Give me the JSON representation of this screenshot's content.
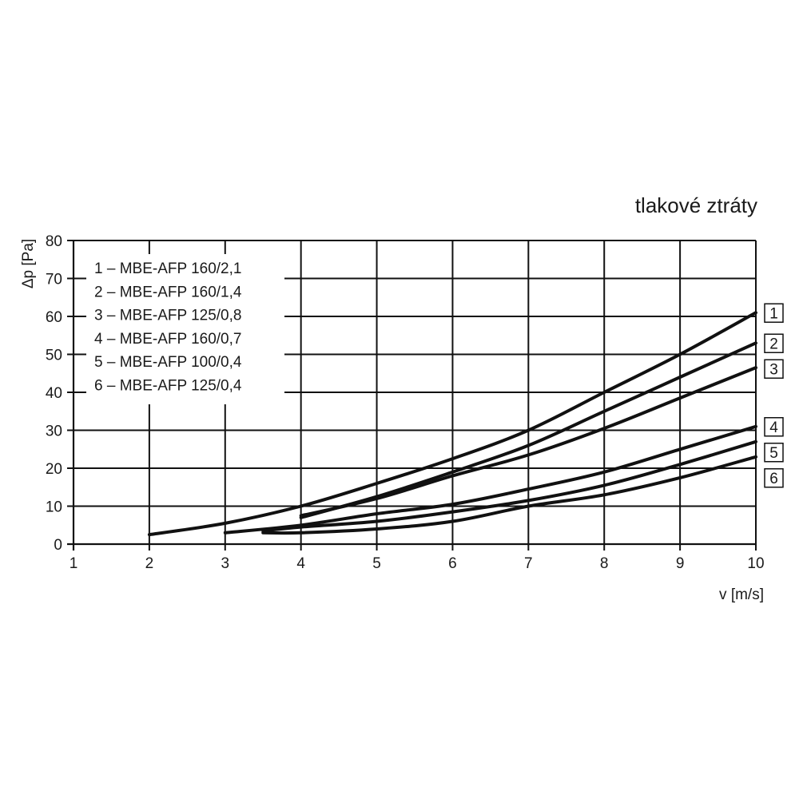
{
  "chart_data": {
    "type": "line",
    "title": "tlakové ztráty",
    "xlabel": "v [m/s]",
    "ylabel": "Δp [Pa]",
    "xlim": [
      1,
      10
    ],
    "ylim": [
      0,
      80
    ],
    "xticks": [
      1,
      2,
      3,
      4,
      5,
      6,
      7,
      8,
      9,
      10
    ],
    "yticks": [
      0,
      10,
      20,
      30,
      40,
      50,
      60,
      70,
      80
    ],
    "grid": true,
    "legend": "top-left",
    "legend_entries": [
      "1 – MBE-AFP 160/2,1",
      "2 – MBE-AFP 160/1,4",
      "3 – MBE-AFP 125/0,8",
      "4 – MBE-AFP 160/0,7",
      "5 – MBE-AFP 100/0,4",
      "6 – MBE-AFP 125/0,4"
    ],
    "series": [
      {
        "name": "1",
        "x": [
          2,
          3,
          4,
          5,
          6,
          7,
          8,
          9,
          10
        ],
        "y": [
          2.5,
          5.5,
          10,
          16,
          22.5,
          30,
          40,
          50,
          61
        ]
      },
      {
        "name": "2",
        "x": [
          4,
          5,
          6,
          7,
          8,
          9,
          10
        ],
        "y": [
          7,
          12.5,
          19,
          26,
          35,
          44,
          53
        ]
      },
      {
        "name": "3",
        "x": [
          4,
          5,
          6,
          7,
          8,
          9,
          10
        ],
        "y": [
          7.5,
          12,
          18,
          23.5,
          30.5,
          38.5,
          46.5
        ]
      },
      {
        "name": "4",
        "x": [
          3,
          4,
          5,
          6,
          7,
          8,
          9,
          10
        ],
        "y": [
          3,
          5,
          8,
          10.5,
          14.5,
          19,
          25,
          31
        ]
      },
      {
        "name": "5",
        "x": [
          3.5,
          4,
          5,
          6,
          7,
          8,
          9,
          10
        ],
        "y": [
          3.5,
          4.5,
          6,
          8.5,
          11.5,
          15.5,
          21,
          27
        ]
      },
      {
        "name": "6",
        "x": [
          3.5,
          4,
          5,
          6,
          7,
          8,
          9,
          10
        ],
        "y": [
          3,
          3,
          4,
          6,
          10,
          13,
          17.5,
          23
        ]
      }
    ],
    "colors": {
      "line": "#111111",
      "grid": "#111111",
      "text": "#1a1a1a",
      "background": "#ffffff"
    }
  }
}
